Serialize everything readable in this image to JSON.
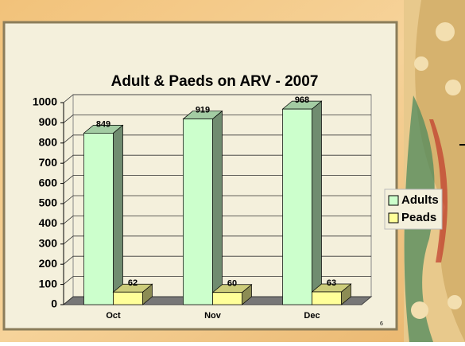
{
  "chart_data": {
    "type": "bar3d",
    "title": "Adult & Paeds on ARV - 2007",
    "categories": [
      "Oct",
      "Nov",
      "Dec"
    ],
    "series": [
      {
        "name": "Adults",
        "color": "#ccffcc",
        "values": [
          849,
          919,
          968
        ]
      },
      {
        "name": "Peads",
        "color": "#ffff99",
        "values": [
          62,
          60,
          63
        ]
      }
    ],
    "ylim": [
      0,
      1000
    ],
    "yticks": [
      0,
      100,
      200,
      300,
      400,
      500,
      600,
      700,
      800,
      900,
      1000
    ],
    "grid": true,
    "legend": "right"
  },
  "slide_number": 6
}
